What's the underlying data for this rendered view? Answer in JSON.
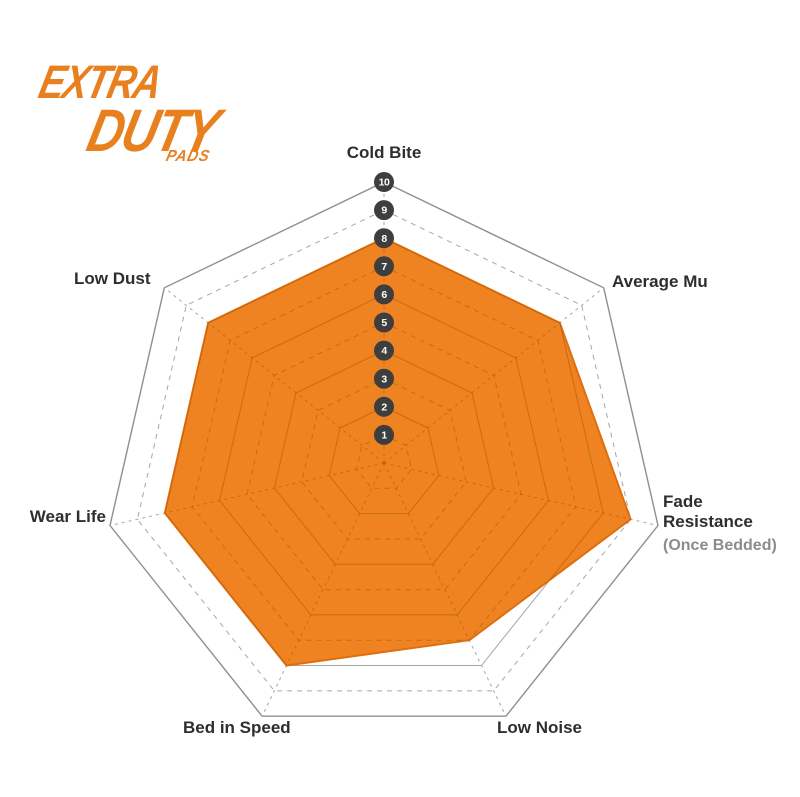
{
  "page": {
    "background": "#FFFFFF"
  },
  "logo": {
    "word_top": "EXTRA",
    "word_middle": "DUTY",
    "word_bottom": "PADS"
  },
  "chart_data": {
    "type": "radar",
    "title": "",
    "categories": [
      "Cold Bite",
      "Average Mu",
      "Fade Resistance",
      "Low Noise",
      "Bed in Speed",
      "Wear Life",
      "Low Dust"
    ],
    "category_sublabels": [
      "",
      "",
      "(Once Bedded)",
      "",
      "",
      "",
      ""
    ],
    "values": [
      8,
      8,
      9,
      7,
      8,
      8,
      8
    ],
    "scale": {
      "min": 0,
      "max": 10,
      "ticks": [
        10,
        9,
        8,
        7,
        6,
        5,
        4,
        3,
        2,
        1
      ],
      "tick_axis": "Cold Bite"
    },
    "grid": {
      "rings": 10,
      "ring_style_even": "solid",
      "ring_style_odd": "dashed",
      "spokes": 7,
      "spoke_style": "dashed"
    },
    "legend": null
  },
  "colors": {
    "fill_orange": "#EF8322",
    "fill_edge": "#DE6F10",
    "grid_gray": "#A6A6A6",
    "grid_outer": "#8F8F8F",
    "grid_on_fill": "#9C5309",
    "tick_circle": "#3E3E3E",
    "tick_text": "#FFFFFF",
    "label_dark": "#2E2E2E",
    "label_gray": "#8C8C8C",
    "logo_orange": "#E8801F"
  }
}
